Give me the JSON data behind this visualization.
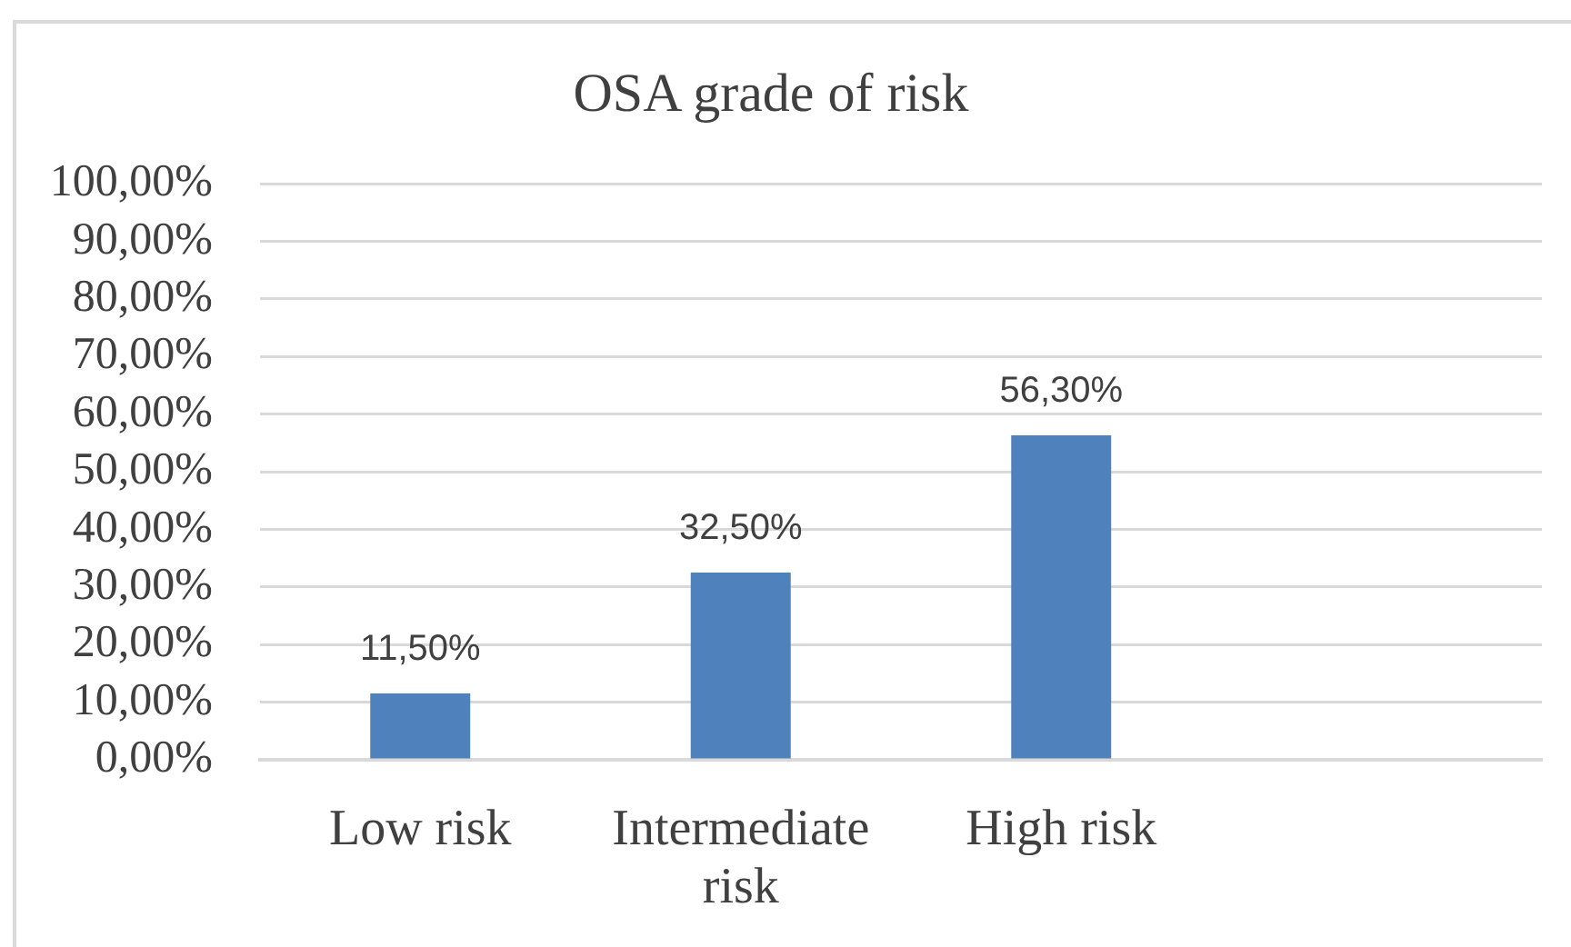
{
  "chart_data": {
    "type": "bar",
    "title": "OSA grade of risk",
    "categories": [
      "Low risk",
      "Intermediate risk",
      "High risk",
      null
    ],
    "values": [
      11.5,
      32.5,
      56.3,
      null
    ],
    "color": "#4f81bd",
    "value_labels": [
      "11,50%",
      "32,50%",
      "56,30%",
      null
    ],
    "ylim": [
      0,
      100
    ],
    "yticks": [
      {
        "value": 0,
        "label": "0,00%"
      },
      {
        "value": 10,
        "label": "10,00%"
      },
      {
        "value": 20,
        "label": "20,00%"
      },
      {
        "value": 30,
        "label": "30,00%"
      },
      {
        "value": 40,
        "label": "40,00%"
      },
      {
        "value": 50,
        "label": "50,00%"
      },
      {
        "value": 60,
        "label": "60,00%"
      },
      {
        "value": 70,
        "label": "70,00%"
      },
      {
        "value": 80,
        "label": "80,00%"
      },
      {
        "value": 90,
        "label": "90,00%"
      },
      {
        "value": 100,
        "label": "100,00%"
      }
    ],
    "grid": "y"
  }
}
